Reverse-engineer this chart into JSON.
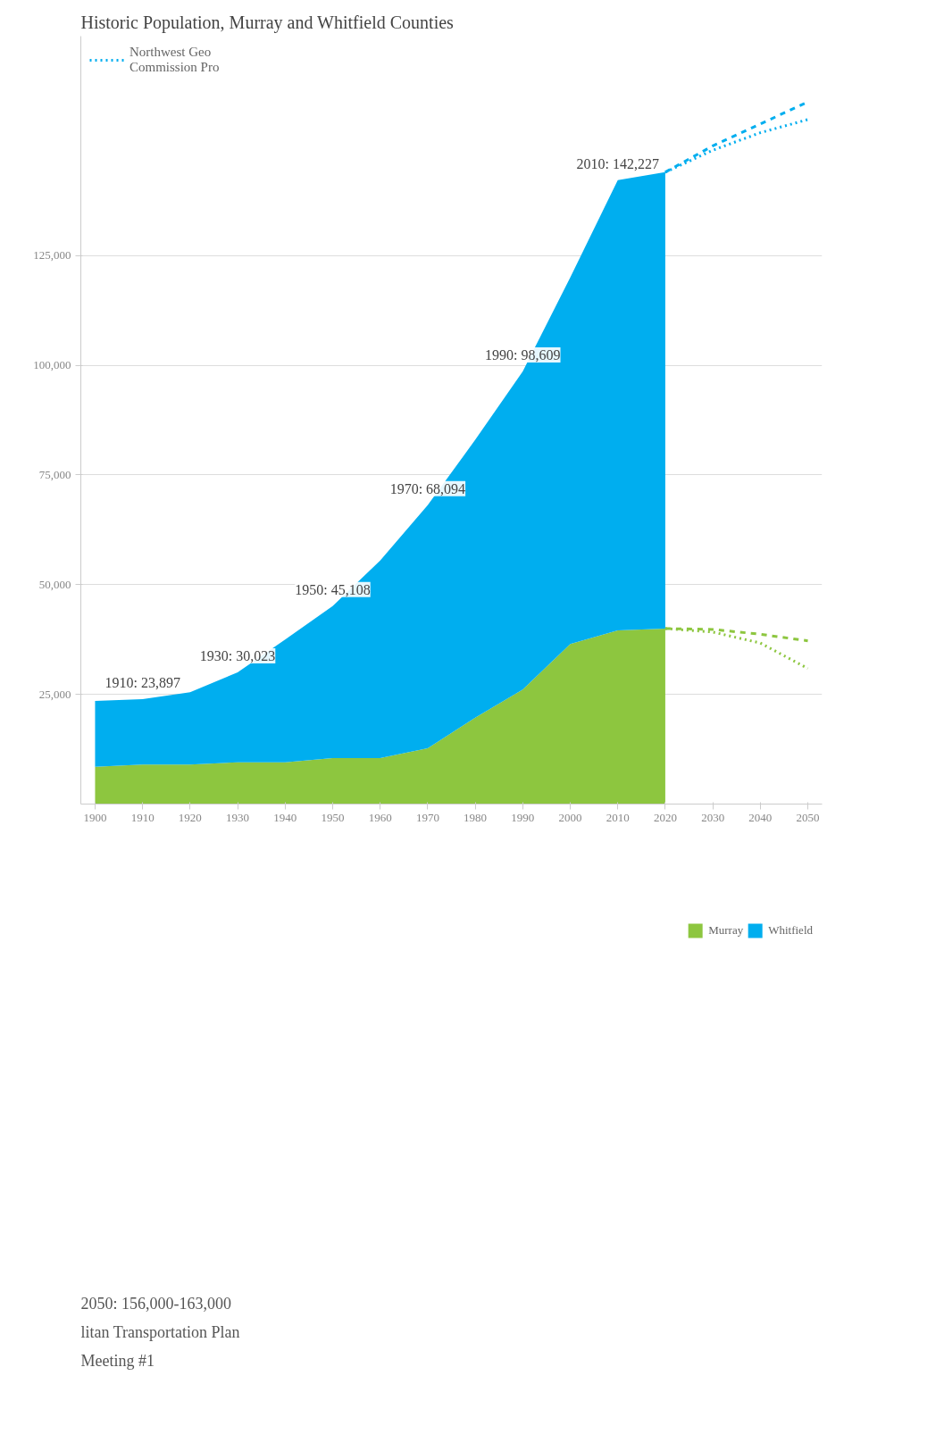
{
  "chart_data": {
    "type": "area",
    "stacked": true,
    "title": "Historic Population, Murray and Whitfield Counties",
    "x": [
      1900,
      1910,
      1920,
      1930,
      1940,
      1950,
      1960,
      1970,
      1980,
      1990,
      2000,
      2010,
      2020
    ],
    "series": [
      {
        "name": "Murray",
        "color": "#8dc63f",
        "values": [
          8500,
          9000,
          9000,
          9500,
          9500,
          10500,
          10500,
          12700,
          19700,
          26100,
          36500,
          39600,
          40000
        ]
      },
      {
        "name": "Whitfield",
        "color": "#00aeef",
        "values": [
          15000,
          14900,
          16500,
          20500,
          28000,
          34600,
          45000,
          55400,
          63300,
          72500,
          83500,
          102600,
          104000
        ]
      },
      {
        "type": "line",
        "line_style": "dashed",
        "color": "#00aeef",
        "x": [
          2020,
          2030,
          2040,
          2050
        ],
        "values": [
          144000,
          150000,
          155000,
          160000
        ]
      },
      {
        "name": "Northwest Geo\nCommission Pro",
        "type": "line",
        "line_style": "dotted",
        "color": "#00aeef",
        "x": [
          2020,
          2030,
          2040,
          2050
        ],
        "values": [
          144000,
          149000,
          153000,
          156000
        ]
      },
      {
        "type": "line",
        "line_style": "dashed",
        "color": "#8dc63f",
        "x": [
          2020,
          2030,
          2040,
          2050
        ],
        "values": [
          40000,
          39800,
          38700,
          37200
        ]
      },
      {
        "type": "line",
        "line_style": "dotted",
        "color": "#8dc63f",
        "x": [
          2020,
          2030,
          2040,
          2050
        ],
        "values": [
          40000,
          39200,
          36700,
          30900
        ]
      }
    ],
    "xlim": [
      1897,
      2053
    ],
    "xticks": [
      1900,
      1910,
      1920,
      1930,
      1940,
      1950,
      1960,
      1970,
      1980,
      1990,
      2000,
      2010,
      2020,
      2030,
      2040,
      2050
    ],
    "ylim": [
      0,
      175000
    ],
    "yticks": [
      {
        "value": 25000,
        "label": "25,000"
      },
      {
        "value": 50000,
        "label": "50,000"
      },
      {
        "value": 75000,
        "label": "75,000"
      },
      {
        "value": 100000,
        "label": "100,000"
      },
      {
        "value": 125000,
        "label": "125,000"
      }
    ],
    "grid": "y",
    "legend": "bottom",
    "annotations": [
      {
        "text": "1910: 23,897",
        "x": 1910,
        "y": 23897
      },
      {
        "text": "1930: 30,023",
        "x": 1930,
        "y": 30023
      },
      {
        "text": "1950: 45,108",
        "x": 1950,
        "y": 45108
      },
      {
        "text": "1970: 68,094",
        "x": 1970,
        "y": 68094
      },
      {
        "text": "1990: 98,609",
        "x": 1990,
        "y": 98609
      },
      {
        "text": "2010: 142,227",
        "x": 2010,
        "y": 142227
      },
      "2050: 156,000-163,000",
      "litan Transportation Plan",
      "Meeting #1"
    ]
  }
}
